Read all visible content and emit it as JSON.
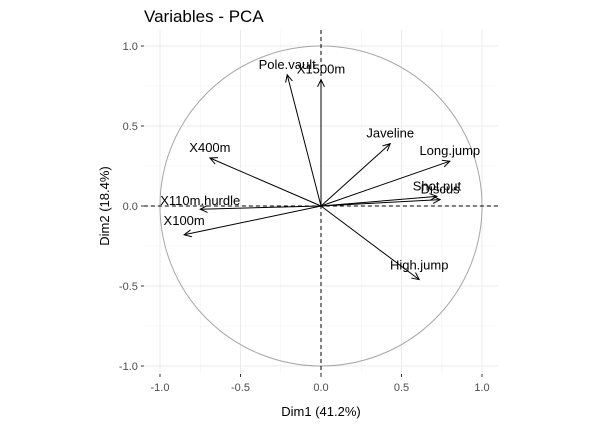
{
  "chart_data": {
    "type": "scatter",
    "title": "Variables - PCA",
    "xlabel": "Dim1 (41.2%)",
    "ylabel": "Dim2 (18.4%)",
    "xlim": [
      -1.1,
      1.1
    ],
    "ylim": [
      -1.05,
      1.1
    ],
    "x_ticks": [
      -1.0,
      -0.5,
      0.0,
      0.5,
      1.0
    ],
    "y_ticks": [
      -1.0,
      -0.5,
      0.0,
      0.5,
      1.0
    ],
    "x_tick_labels": [
      "-1.0",
      "-0.5",
      "0.0",
      "0.5",
      "1.0"
    ],
    "y_tick_labels": [
      "-1.0",
      "-0.5",
      "0.0",
      "0.5",
      "1.0"
    ],
    "grid": true,
    "unit_circle": true,
    "variables": [
      {
        "name": "X100m",
        "x": -0.85,
        "y": -0.18
      },
      {
        "name": "Long.jump",
        "x": 0.8,
        "y": 0.28
      },
      {
        "name": "Shot.put",
        "x": 0.72,
        "y": 0.06
      },
      {
        "name": "High.jump",
        "x": 0.61,
        "y": -0.46
      },
      {
        "name": "X400m",
        "x": -0.69,
        "y": 0.3
      },
      {
        "name": "X110m.hurdle",
        "x": -0.75,
        "y": -0.02
      },
      {
        "name": "Discus",
        "x": 0.74,
        "y": 0.04
      },
      {
        "name": "Pole.vault",
        "x": -0.21,
        "y": 0.82
      },
      {
        "name": "Javeline",
        "x": 0.43,
        "y": 0.39
      },
      {
        "name": "X1500m",
        "x": 0.0,
        "y": 0.79
      }
    ]
  }
}
